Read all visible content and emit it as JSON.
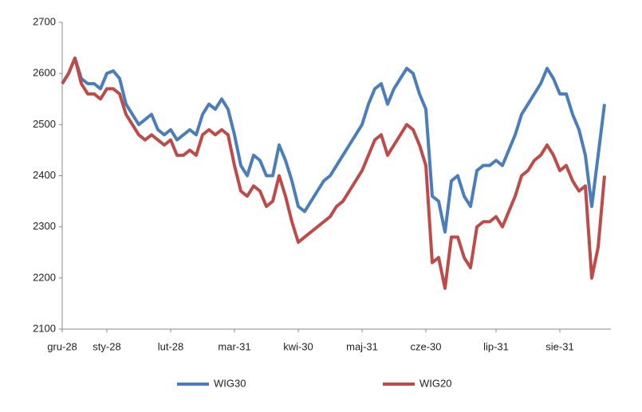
{
  "chart_data": {
    "type": "line",
    "categories": [
      "gru-28",
      null,
      null,
      null,
      null,
      null,
      null,
      "sty-28",
      null,
      null,
      null,
      null,
      null,
      null,
      null,
      null,
      null,
      "lut-28",
      null,
      null,
      null,
      null,
      null,
      null,
      null,
      null,
      null,
      "mar-31",
      null,
      null,
      null,
      null,
      null,
      null,
      null,
      null,
      null,
      "kwi-30",
      null,
      null,
      null,
      null,
      null,
      null,
      null,
      null,
      null,
      "maj-31",
      null,
      null,
      null,
      null,
      null,
      null,
      null,
      null,
      null,
      "cze-30",
      null,
      null,
      null,
      null,
      null,
      null,
      null,
      null,
      null,
      null,
      "lip-31",
      null,
      null,
      null,
      null,
      null,
      null,
      null,
      null,
      null,
      "sie-31",
      null,
      null,
      null,
      null,
      null,
      null,
      null
    ],
    "series": [
      {
        "name": "WIG30",
        "color": "#4a7ebb",
        "values": [
          2580,
          2600,
          2630,
          2590,
          2580,
          2580,
          2570,
          2600,
          2605,
          2590,
          2540,
          2520,
          2500,
          2510,
          2520,
          2490,
          2480,
          2490,
          2470,
          2480,
          2490,
          2480,
          2520,
          2540,
          2530,
          2550,
          2530,
          2480,
          2420,
          2400,
          2440,
          2430,
          2400,
          2400,
          2460,
          2430,
          2390,
          2340,
          2330,
          2350,
          2370,
          2390,
          2400,
          2420,
          2440,
          2460,
          2480,
          2500,
          2540,
          2570,
          2580,
          2540,
          2570,
          2590,
          2610,
          2600,
          2560,
          2530,
          2360,
          2350,
          2290,
          2390,
          2400,
          2360,
          2340,
          2410,
          2420,
          2420,
          2430,
          2420,
          2450,
          2480,
          2520,
          2540,
          2560,
          2580,
          2610,
          2590,
          2560,
          2560,
          2520,
          2490,
          2440,
          2340,
          2440,
          2540
        ]
      },
      {
        "name": "WIG20",
        "color": "#be4b48",
        "values": [
          2580,
          2600,
          2630,
          2580,
          2560,
          2560,
          2550,
          2570,
          2570,
          2560,
          2520,
          2500,
          2480,
          2470,
          2480,
          2470,
          2460,
          2470,
          2440,
          2440,
          2450,
          2440,
          2480,
          2490,
          2480,
          2490,
          2480,
          2420,
          2370,
          2360,
          2380,
          2370,
          2340,
          2350,
          2400,
          2360,
          2310,
          2270,
          2280,
          2290,
          2300,
          2310,
          2320,
          2340,
          2350,
          2370,
          2390,
          2410,
          2440,
          2470,
          2480,
          2440,
          2460,
          2480,
          2500,
          2490,
          2460,
          2420,
          2230,
          2240,
          2180,
          2280,
          2280,
          2240,
          2220,
          2300,
          2310,
          2310,
          2320,
          2300,
          2330,
          2360,
          2400,
          2410,
          2430,
          2440,
          2460,
          2440,
          2410,
          2420,
          2390,
          2370,
          2380,
          2200,
          2260,
          2400
        ]
      }
    ],
    "ylim": [
      2100,
      2700
    ],
    "yticks": [
      2100,
      2200,
      2300,
      2400,
      2500,
      2600,
      2700
    ],
    "legend": "bottom"
  }
}
